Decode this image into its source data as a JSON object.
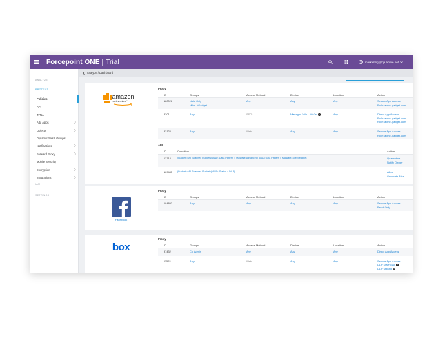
{
  "app": {
    "brand": "Forcepoint ONE",
    "sep": "|",
    "trial": "Trial",
    "user": "marketing@qa.acme.net"
  },
  "breadcrumb": "Analyze / Dashboard",
  "sidebar": {
    "sections": {
      "analyze": "ANALYZE",
      "protect": "PROTECT",
      "iam": "IAM",
      "settings": "SETTINGS"
    },
    "items": [
      {
        "label": "Policies",
        "chev": false,
        "active": true
      },
      {
        "label": "API",
        "chev": false
      },
      {
        "label": "ZTNA",
        "chev": false
      },
      {
        "label": "Add Apps",
        "chev": true
      },
      {
        "label": "Objects",
        "chev": true
      },
      {
        "label": "Dynamic SaaS Groups",
        "chev": false
      },
      {
        "label": "Notifications",
        "chev": true
      },
      {
        "label": "Forward Proxy",
        "chev": true
      },
      {
        "label": "Mobile Security",
        "chev": false
      },
      {
        "label": "Encryption",
        "chev": true
      },
      {
        "label": "Integrations",
        "chev": true
      }
    ]
  },
  "labels": {
    "proxy": "Proxy",
    "api": "API"
  },
  "proxy_headers": [
    "ID",
    "Groups",
    "Access Method",
    "Device",
    "Location",
    "Action"
  ],
  "api_headers": [
    "ID",
    "Condition",
    "Action"
  ],
  "cards": {
    "amazon": {
      "logo_text": "amazon",
      "logo_sub": "web services™",
      "proxy_rows": [
        {
          "id": "180026",
          "groups": [
            "Nala Only",
            "Mike-AGadget"
          ],
          "access": "Any",
          "device": "Any",
          "location": "Any",
          "action": [
            "Secure App Access",
            "Role: acme-gadget.com"
          ]
        },
        {
          "id": "8201",
          "groups": [
            "Any"
          ],
          "access": "SSO",
          "device": "Managed-Win - AV On",
          "location": "Any",
          "action": [
            "Direct App Access",
            "Role: acme-gadget.com",
            "Role: acme-gadget.com"
          ]
        },
        {
          "id": "33123",
          "groups": [
            "Any"
          ],
          "access": "Web",
          "device": "Any",
          "location": "Any",
          "action": [
            "Secure App Access",
            "Role: acme-gadget.com"
          ]
        }
      ],
      "api_rows": [
        {
          "id": "12714",
          "condition": "(Bucket = All Scanned Buckets) AND (Data Pattern = Malware-Advanced) AND (Data Pattern = Malware-Greedenline)",
          "action": [
            "Quarantine",
            "Notify Owner"
          ]
        },
        {
          "id": "169485",
          "condition": "(Bucket = All Scanned Buckets) AND (Status = DLP)",
          "action": [
            "Allow",
            "Generate Alert"
          ]
        }
      ]
    },
    "facebook": {
      "logo_caption": "Facebook",
      "proxy_rows": [
        {
          "id": "184893",
          "groups": [
            "Any"
          ],
          "access": "Any",
          "device": "Any",
          "location": "Any",
          "action": [
            "Secure App Access",
            "Read-Only"
          ]
        }
      ]
    },
    "box": {
      "logo_text": "box",
      "proxy_rows": [
        {
          "id": "97432",
          "groups": [
            "Co Admin"
          ],
          "access": "Any",
          "device": "Any",
          "location": "Any",
          "action": [
            "Direct App Access"
          ]
        },
        {
          "id": "11562",
          "groups": [
            "Any"
          ],
          "access": "Web",
          "device": "Any",
          "location": "Any",
          "action": [
            "Secure App Access",
            "DLP Download",
            "DLP Upload"
          ]
        }
      ]
    }
  },
  "colors": {
    "topbar": "#6a4b96",
    "link": "#1b83d4",
    "accent": "#2a9fd8",
    "facebook": "#3b5998",
    "box": "#0061d5",
    "amazon_orange": "#f79400"
  }
}
